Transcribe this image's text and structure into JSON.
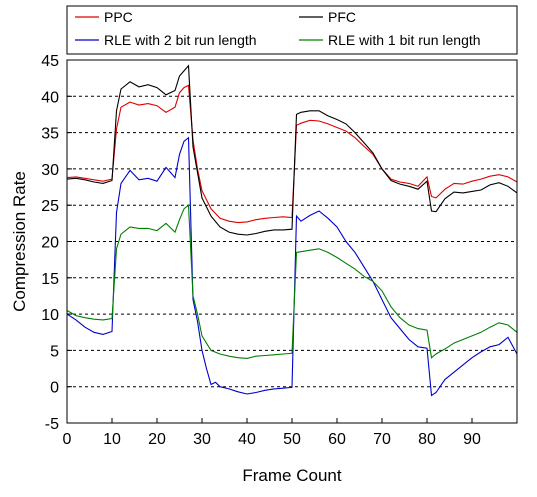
{
  "chart_data": {
    "type": "line",
    "xlabel": "Frame Count",
    "ylabel": "Compression Rate",
    "xlim": [
      0,
      100
    ],
    "ylim": [
      -5,
      45
    ],
    "xticks": [
      0,
      10,
      20,
      30,
      40,
      50,
      60,
      70,
      80,
      90
    ],
    "yticks": [
      -5,
      0,
      5,
      10,
      15,
      20,
      25,
      30,
      35,
      40,
      45
    ],
    "grid": "horizontal dashed",
    "legend_position": "top",
    "series": [
      {
        "name": "PPC",
        "color": "#dd0000",
        "x": [
          0,
          2,
          4,
          6,
          8,
          10,
          11,
          12,
          14,
          16,
          18,
          20,
          22,
          24,
          25,
          26,
          27,
          28,
          29,
          30,
          32,
          34,
          36,
          38,
          40,
          42,
          44,
          46,
          48,
          50,
          51,
          52,
          54,
          56,
          58,
          60,
          62,
          64,
          66,
          68,
          70,
          72,
          74,
          76,
          78,
          80,
          81,
          82,
          84,
          86,
          88,
          90,
          92,
          94,
          96,
          98,
          100
        ],
        "values": [
          28.8,
          28.9,
          28.7,
          28.5,
          28.3,
          28.6,
          35.5,
          38.5,
          39.2,
          38.8,
          39.0,
          38.7,
          37.8,
          38.5,
          40.5,
          41.2,
          41.5,
          34.0,
          30.0,
          27.0,
          24.5,
          23.2,
          22.8,
          22.6,
          22.7,
          23.0,
          23.2,
          23.3,
          23.4,
          23.3,
          36.0,
          36.3,
          36.7,
          36.6,
          36.2,
          35.7,
          35.2,
          34.3,
          33.1,
          32.0,
          30.0,
          28.6,
          28.2,
          28.0,
          27.6,
          28.9,
          26.2,
          26.0,
          27.2,
          28.0,
          27.9,
          28.3,
          28.6,
          29.0,
          29.2,
          28.9,
          28.2
        ]
      },
      {
        "name": "PFC",
        "color": "#000000",
        "x": [
          0,
          2,
          4,
          6,
          8,
          10,
          11,
          12,
          14,
          16,
          18,
          20,
          22,
          24,
          25,
          26,
          27,
          28,
          29,
          30,
          32,
          34,
          36,
          38,
          40,
          42,
          44,
          46,
          48,
          50,
          51,
          52,
          54,
          56,
          58,
          60,
          62,
          64,
          66,
          68,
          70,
          72,
          74,
          76,
          78,
          80,
          81,
          82,
          84,
          86,
          88,
          90,
          92,
          94,
          96,
          98,
          100
        ],
        "values": [
          28.6,
          28.7,
          28.5,
          28.2,
          28.0,
          28.4,
          38.0,
          41.0,
          42.0,
          41.3,
          41.6,
          41.2,
          40.2,
          40.8,
          42.8,
          43.5,
          44.2,
          33.0,
          29.5,
          26.0,
          23.5,
          22.0,
          21.3,
          21.0,
          20.9,
          21.1,
          21.4,
          21.6,
          21.6,
          21.7,
          37.5,
          37.8,
          38.0,
          38.0,
          37.3,
          36.8,
          36.2,
          35.0,
          33.6,
          32.2,
          30.0,
          28.4,
          27.9,
          27.6,
          27.2,
          28.3,
          24.2,
          24.1,
          25.9,
          26.8,
          26.7,
          26.9,
          27.1,
          27.8,
          28.1,
          27.6,
          26.7
        ]
      },
      {
        "name": "RLE with 2 bit run length",
        "color": "#0000cc",
        "x": [
          0,
          2,
          4,
          6,
          8,
          10,
          11,
          12,
          14,
          16,
          18,
          20,
          22,
          24,
          25,
          26,
          27,
          28,
          29,
          30,
          31,
          32,
          33,
          34,
          36,
          38,
          40,
          42,
          44,
          46,
          48,
          50,
          51,
          52,
          54,
          56,
          58,
          60,
          62,
          64,
          66,
          68,
          70,
          72,
          74,
          76,
          78,
          80,
          81,
          82,
          84,
          86,
          88,
          90,
          92,
          94,
          96,
          98,
          100
        ],
        "values": [
          10.0,
          9.2,
          8.2,
          7.5,
          7.2,
          7.6,
          24.0,
          28.0,
          29.8,
          28.5,
          28.7,
          28.3,
          30.2,
          28.8,
          32.0,
          33.8,
          34.3,
          12.0,
          9.0,
          5.0,
          2.5,
          0.3,
          0.6,
          0.0,
          -0.3,
          -0.7,
          -1.0,
          -0.8,
          -0.5,
          -0.3,
          -0.2,
          -0.1,
          23.5,
          22.8,
          23.6,
          24.2,
          23.2,
          22.0,
          20.0,
          18.5,
          16.5,
          14.5,
          12.0,
          9.5,
          8.0,
          6.5,
          5.5,
          5.3,
          -1.2,
          -0.8,
          1.0,
          2.0,
          3.0,
          4.0,
          4.8,
          5.5,
          5.8,
          6.8,
          4.5
        ]
      },
      {
        "name": "RLE with 1 bit run length",
        "color": "#008000",
        "x": [
          0,
          2,
          4,
          6,
          8,
          10,
          11,
          12,
          14,
          16,
          18,
          20,
          22,
          24,
          25,
          26,
          27,
          28,
          29,
          30,
          32,
          34,
          36,
          38,
          40,
          42,
          44,
          46,
          48,
          50,
          51,
          52,
          54,
          56,
          58,
          60,
          62,
          64,
          66,
          68,
          70,
          72,
          74,
          76,
          78,
          80,
          81,
          82,
          84,
          86,
          88,
          90,
          92,
          94,
          96,
          98,
          100
        ],
        "values": [
          10.5,
          9.8,
          9.5,
          9.3,
          9.2,
          9.4,
          19.0,
          21.0,
          22.0,
          21.8,
          21.8,
          21.5,
          22.5,
          21.3,
          23.0,
          24.5,
          25.0,
          12.5,
          10.0,
          7.0,
          5.0,
          4.5,
          4.2,
          4.0,
          3.9,
          4.2,
          4.3,
          4.4,
          4.5,
          4.6,
          18.5,
          18.6,
          18.8,
          19.0,
          18.5,
          17.8,
          17.0,
          16.2,
          15.2,
          14.5,
          13.2,
          11.0,
          9.5,
          8.5,
          8.0,
          7.8,
          4.0,
          4.5,
          5.2,
          6.0,
          6.5,
          7.0,
          7.5,
          8.2,
          8.8,
          8.5,
          7.5
        ]
      }
    ]
  }
}
